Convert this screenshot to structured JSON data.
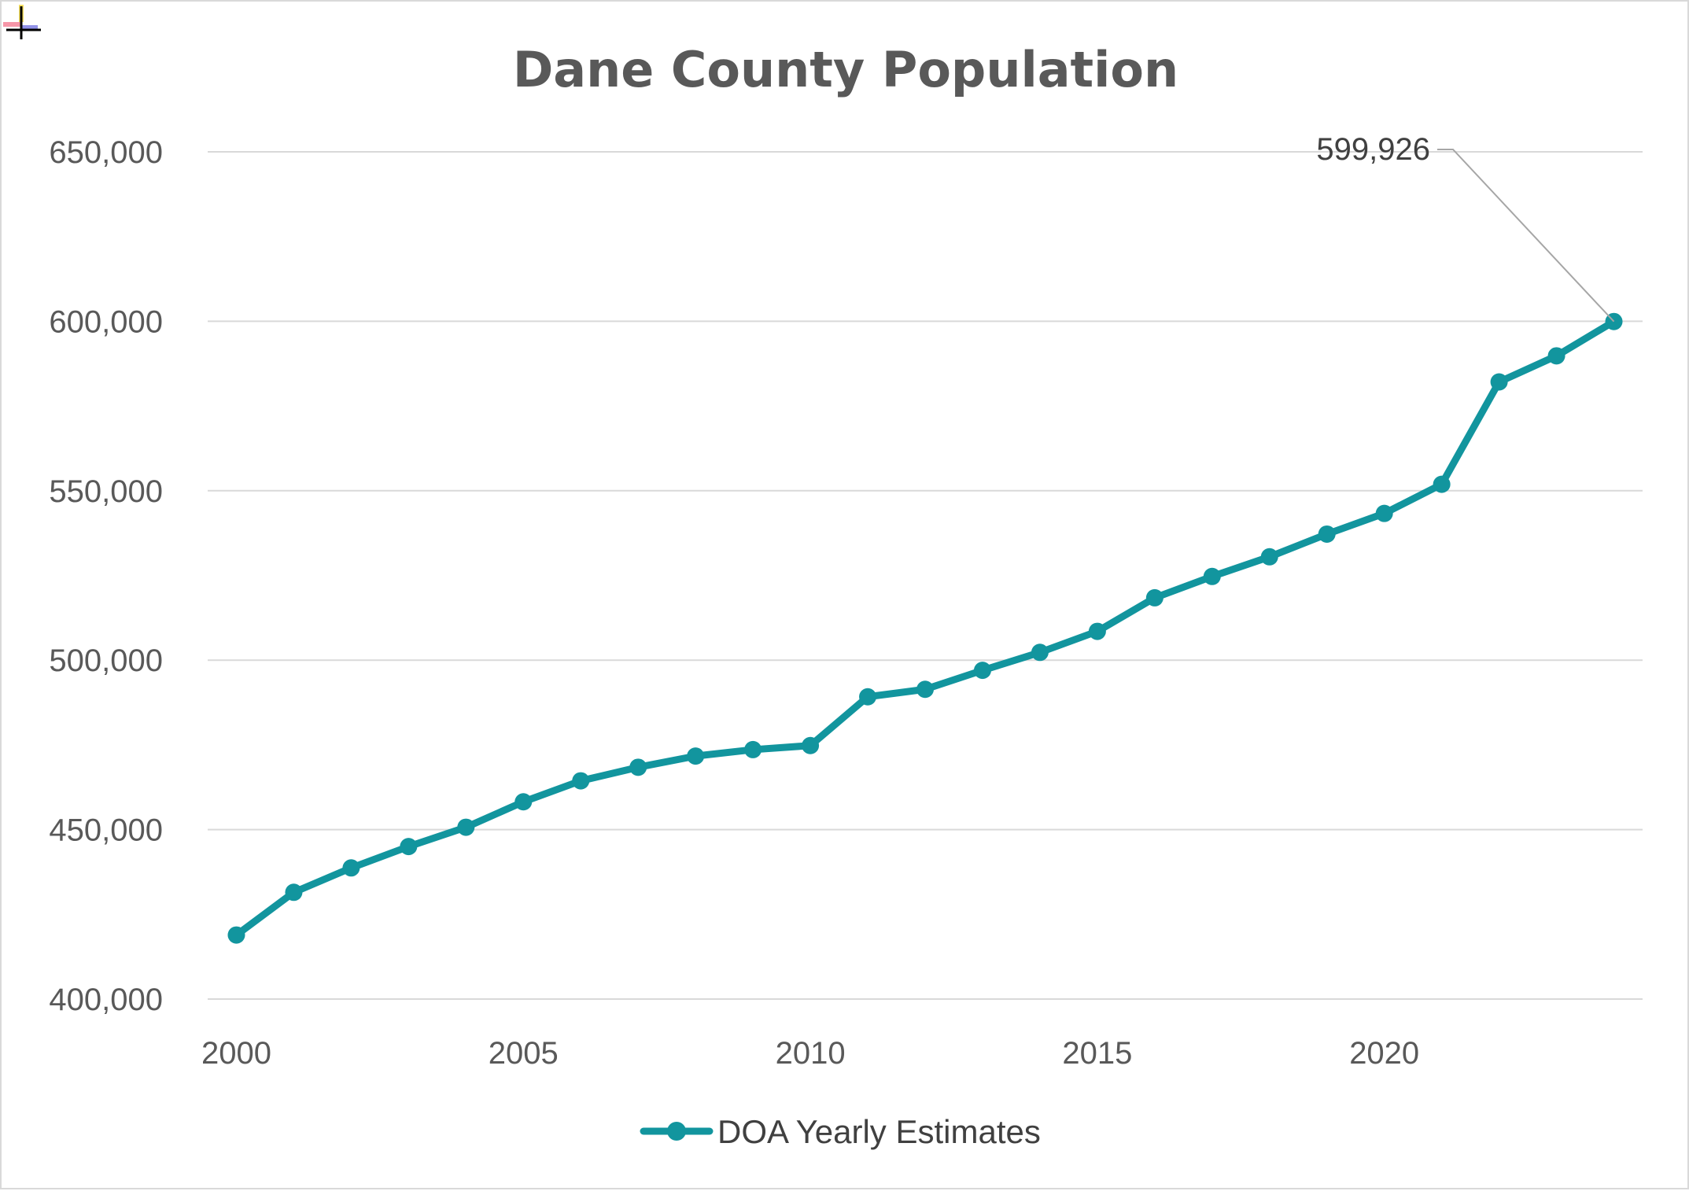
{
  "colors": {
    "series": "#12959E",
    "grid": "#D9D9D9",
    "text": "#595959",
    "background": "#FFFFFF"
  },
  "chart_data": {
    "type": "line",
    "title": "Dane County Population",
    "xlabel": "",
    "ylabel": "",
    "xlim": [
      1999.5,
      2024.5
    ],
    "ylim": [
      400000,
      650000
    ],
    "grid": true,
    "legend_position": "bottom",
    "x_ticks": [
      2000,
      2005,
      2010,
      2015,
      2020
    ],
    "x_tick_labels": [
      "2000",
      "2005",
      "2010",
      "2015",
      "2020"
    ],
    "y_ticks": [
      400000,
      450000,
      500000,
      550000,
      600000,
      650000
    ],
    "y_tick_labels": [
      "400,000",
      "450,000",
      "500,000",
      "550,000",
      "600,000",
      "650,000"
    ],
    "x": [
      2000,
      2001,
      2002,
      2003,
      2004,
      2005,
      2006,
      2007,
      2008,
      2009,
      2010,
      2011,
      2012,
      2013,
      2014,
      2015,
      2016,
      2017,
      2018,
      2019,
      2020,
      2021,
      2022,
      2023,
      2024
    ],
    "series": [
      {
        "name": "DOA Yearly Estimates",
        "values": [
          418900,
          431500,
          438700,
          445000,
          450700,
          458200,
          464400,
          468400,
          471700,
          473600,
          474800,
          489200,
          491400,
          497000,
          502300,
          508500,
          518400,
          524700,
          530500,
          537200,
          543300,
          551900,
          582100,
          589800,
          599926
        ]
      }
    ],
    "annotations": [
      {
        "text": "599,926",
        "x": 2024,
        "y": 599926
      }
    ]
  }
}
